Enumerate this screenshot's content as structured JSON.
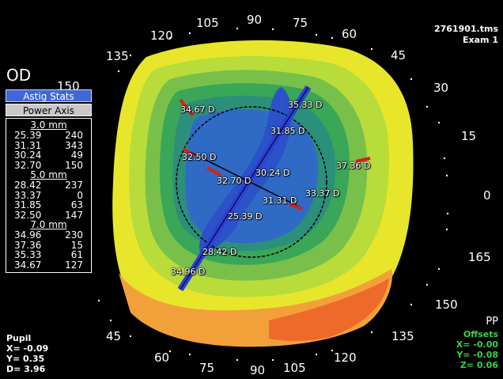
{
  "header": {
    "filename": "2761901.tms",
    "exam": "Exam 1"
  },
  "eye": "OD",
  "stats_panel": {
    "astig_button": "Astig Stats",
    "power_button": "Power Axis",
    "sections": [
      {
        "title": "3.0 mm",
        "rows": [
          [
            "25.39",
            "240"
          ],
          [
            "31.31",
            "343"
          ],
          [
            "30.24",
            "49"
          ],
          [
            "32.70",
            "150"
          ]
        ]
      },
      {
        "title": "5.0 mm",
        "rows": [
          [
            "28.42",
            "237"
          ],
          [
            "33.37",
            "0"
          ],
          [
            "31.85",
            "63"
          ],
          [
            "32.50",
            "147"
          ]
        ]
      },
      {
        "title": "7.0 mm",
        "rows": [
          [
            "34.96",
            "230"
          ],
          [
            "37.36",
            "15"
          ],
          [
            "35.33",
            "61"
          ],
          [
            "34.67",
            "127"
          ]
        ]
      }
    ]
  },
  "pupil": {
    "title": "Pupil",
    "x": "X= -0.09",
    "y": "Y=  0.35",
    "d": "D=  3.96"
  },
  "offsets": {
    "pp": "PP",
    "title": "Offsets",
    "x": "X= -0.00",
    "y": "Y= -0.08",
    "z": "Z=  0.06"
  },
  "degree_labels": {
    "d120": "120",
    "d105": "105",
    "d90": "90",
    "d75": "75",
    "d60": "60",
    "d45": "45",
    "d30": "30",
    "d15": "15",
    "d0": "0",
    "d165": "165",
    "d150": "150",
    "d135": "135",
    "d135b": "135",
    "d150b": "150",
    "d45b": "45",
    "d60b": "60",
    "d75b": "75",
    "d90b": "90",
    "d105b": "105",
    "d120b": "120"
  },
  "map_labels": {
    "l1": "34.67 D",
    "l2": "35.33 D",
    "l3": "31.85 D",
    "l4": "32.50 D",
    "l5": "30.24 D",
    "l6": "32.70 D",
    "l7": "37.36 D",
    "l8": "33.37 D",
    "l9": "31.31 D",
    "l10": "25.39 D",
    "l11": "28.42 D",
    "l12": "34.96 D"
  },
  "colors": {
    "yellow": "#e8e62a",
    "lime": "#b8dc3a",
    "green1": "#79c04a",
    "green2": "#3aa657",
    "teal": "#2b8f7a",
    "blue1": "#2f6bc4",
    "blue2": "#2b52c8",
    "orange1": "#f2a03a",
    "orange2": "#ee6a2a"
  }
}
